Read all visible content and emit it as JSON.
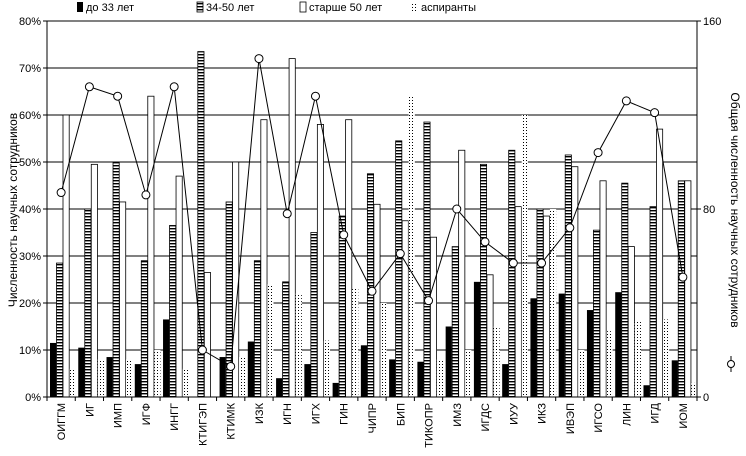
{
  "colors": {
    "under33": "#000000",
    "age34_50": "#000000",
    "over50": "#ffffff",
    "aspirants": "#000000",
    "grid": "#000000",
    "line": "#000000"
  },
  "chart_data": {
    "type": "bar",
    "title": "",
    "ylabel": "Численность научных сотрудников",
    "y2label": "Общая численность научных сотрудников",
    "ylim": [
      0,
      80
    ],
    "y2lim": [
      0,
      160
    ],
    "yticks": [
      "0%",
      "10%",
      "20%",
      "30%",
      "40%",
      "50%",
      "60%",
      "70%",
      "80%"
    ],
    "y2ticks": [
      "0",
      "80",
      "160"
    ],
    "grid": true,
    "legend_position": "top",
    "categories": [
      "ОИГГМ",
      "ИГ",
      "ИМП",
      "ИГФ",
      "ИНГГ",
      "КТИГЭП",
      "КТИМК",
      "ИЗК",
      "ИГН",
      "ИГХ",
      "ГИН",
      "ЧИПР",
      "БИП",
      "ТИКОПР",
      "ИМЗ",
      "ИГДС",
      "ИУУ",
      "ИКЗ",
      "ИВЭП",
      "ИГСО",
      "ЛИН",
      "ИГД",
      "ИОМ"
    ],
    "series": [
      {
        "name": "до 33 лет",
        "style": "solid",
        "values": [
          11.5,
          10.5,
          8.5,
          7,
          16.5,
          0,
          8.5,
          11.8,
          4,
          7,
          3,
          11,
          8,
          7.5,
          15,
          24.5,
          7,
          21,
          22,
          18.5,
          22.3,
          2.5,
          7.8
        ]
      },
      {
        "name": "34-50 лет",
        "style": "hatched",
        "values": [
          28.5,
          40,
          50,
          29,
          36.5,
          73.5,
          41.5,
          29,
          24.5,
          35,
          38.5,
          47.5,
          54.5,
          58.5,
          32,
          49.5,
          52.5,
          40,
          51.5,
          35.5,
          45.5,
          40.5,
          46
        ]
      },
      {
        "name": "старше 50 лет",
        "style": "outline",
        "values": [
          60,
          49.5,
          41.5,
          64,
          47,
          26.5,
          50,
          59,
          72,
          58,
          59,
          41,
          37.5,
          34,
          52.5,
          26,
          40.5,
          38.5,
          49,
          46,
          32,
          57,
          46
        ]
      },
      {
        "name": "аспиранты",
        "style": "dotted",
        "values": [
          6,
          8,
          8,
          10,
          6,
          0,
          8.5,
          24,
          22,
          12,
          23,
          20,
          64,
          8,
          10,
          15,
          60,
          40,
          10,
          14,
          16,
          16.5,
          3
        ]
      },
      {
        "name": "Общая численность научных сотрудников",
        "axis": "right",
        "type": "line",
        "values": [
          87,
          132,
          128,
          86,
          132,
          20,
          13,
          144,
          78,
          128,
          69,
          45,
          61,
          41,
          80,
          66,
          57,
          57,
          72,
          104,
          126,
          121,
          51
        ]
      }
    ]
  }
}
